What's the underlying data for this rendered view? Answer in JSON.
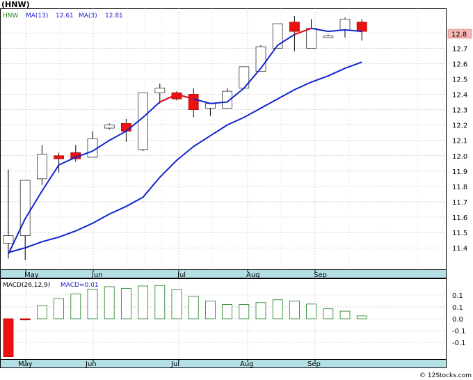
{
  "header": {
    "symbol": "(HNW)",
    "legend_ticker": "HNW",
    "legend_ma13_label": "MA(13)",
    "legend_ma13_value": "12.61",
    "legend_ma3_label": "MA(3)",
    "legend_ma3_value": "12.81"
  },
  "last_price_badge": "12.8",
  "watermark": "© 12Stocks.com",
  "chart_data": [
    {
      "type": "candlestick",
      "ylim": [
        11.26,
        12.96
      ],
      "y_ticks": [
        "11.4",
        "11.5",
        "11.6",
        "11.7",
        "11.8",
        "11.9",
        "12.0",
        "12.1",
        "12.2",
        "12.3",
        "12.4",
        "12.5",
        "12.6",
        "12.7",
        "12.8"
      ],
      "x_ticks": [
        "May",
        "Jun",
        "Jul",
        "Aug",
        "Sep"
      ],
      "grid": true,
      "colors": {
        "up": "#ffffff",
        "down": "#ee1111",
        "ma13": "#1122cc",
        "ma3_up": "#1122cc",
        "ma3_down": "#ee1111"
      },
      "candles": [
        {
          "open": 11.43,
          "high": 11.91,
          "low": 11.33,
          "close": 11.48
        },
        {
          "open": 11.48,
          "high": 11.84,
          "low": 11.32,
          "close": 11.84
        },
        {
          "open": 11.85,
          "high": 12.07,
          "low": 11.81,
          "close": 12.01
        },
        {
          "open": 12.0,
          "high": 12.02,
          "low": 11.89,
          "close": 11.98
        },
        {
          "open": 12.02,
          "high": 12.07,
          "low": 11.96,
          "close": 11.98
        },
        {
          "open": 11.99,
          "high": 12.16,
          "low": 11.99,
          "close": 12.11
        },
        {
          "open": 12.18,
          "high": 12.21,
          "low": 12.17,
          "close": 12.2
        },
        {
          "open": 12.21,
          "high": 12.24,
          "low": 12.09,
          "close": 12.16
        },
        {
          "open": 12.04,
          "high": 12.41,
          "low": 12.03,
          "close": 12.41
        },
        {
          "open": 12.41,
          "high": 12.47,
          "low": 12.34,
          "close": 12.44
        },
        {
          "open": 12.41,
          "high": 12.42,
          "low": 12.36,
          "close": 12.37
        },
        {
          "open": 12.4,
          "high": 12.44,
          "low": 12.25,
          "close": 12.3
        },
        {
          "open": 12.31,
          "high": 12.34,
          "low": 12.26,
          "close": 12.34
        },
        {
          "open": 12.31,
          "high": 12.44,
          "low": 12.31,
          "close": 12.42
        },
        {
          "open": 12.44,
          "high": 12.58,
          "low": 12.44,
          "close": 12.58
        },
        {
          "open": 12.55,
          "high": 12.72,
          "low": 12.55,
          "close": 12.71
        },
        {
          "open": 12.7,
          "high": 12.86,
          "low": 12.7,
          "close": 12.86
        },
        {
          "open": 12.87,
          "high": 12.91,
          "low": 12.68,
          "close": 12.81
        },
        {
          "open": 12.7,
          "high": 12.89,
          "low": 12.7,
          "close": 12.83
        },
        {
          "open": 12.77,
          "high": 12.79,
          "low": 12.77,
          "close": 12.78
        },
        {
          "open": 12.82,
          "high": 12.9,
          "low": 12.77,
          "close": 12.89
        },
        {
          "open": 12.87,
          "high": 12.89,
          "low": 12.75,
          "close": 12.81
        }
      ],
      "ma13": [
        11.37,
        11.4,
        11.44,
        11.47,
        11.51,
        11.56,
        11.62,
        11.67,
        11.73,
        11.86,
        11.97,
        12.06,
        12.13,
        12.2,
        12.25,
        12.31,
        12.37,
        12.43,
        12.48,
        12.52,
        12.57,
        12.61
      ],
      "ma3": [
        11.36,
        11.59,
        11.77,
        11.94,
        11.99,
        12.03,
        12.1,
        12.16,
        12.25,
        12.35,
        12.4,
        12.37,
        12.34,
        12.35,
        12.44,
        12.57,
        12.72,
        12.79,
        12.83,
        12.81,
        12.82,
        12.81
      ],
      "ma3_down_segments": [
        [
          9,
          11
        ],
        [
          17,
          18
        ]
      ]
    },
    {
      "type": "bar",
      "title": "MACD(26,12,9)",
      "legend_label": "MACD=0.01",
      "ylim": [
        -0.17,
        0.17
      ],
      "y_ticks": [
        "0.1",
        "0.1",
        "0.0",
        "-0.1",
        "-0.1"
      ],
      "x_ticks": [
        "May",
        "Jun",
        "Jul",
        "Aug",
        "Sep"
      ],
      "values": [
        -0.16,
        -0.005,
        0.055,
        0.085,
        0.105,
        0.125,
        0.135,
        0.128,
        0.138,
        0.14,
        0.124,
        0.095,
        0.075,
        0.06,
        0.06,
        0.068,
        0.08,
        0.075,
        0.062,
        0.042,
        0.032,
        0.012
      ]
    }
  ]
}
